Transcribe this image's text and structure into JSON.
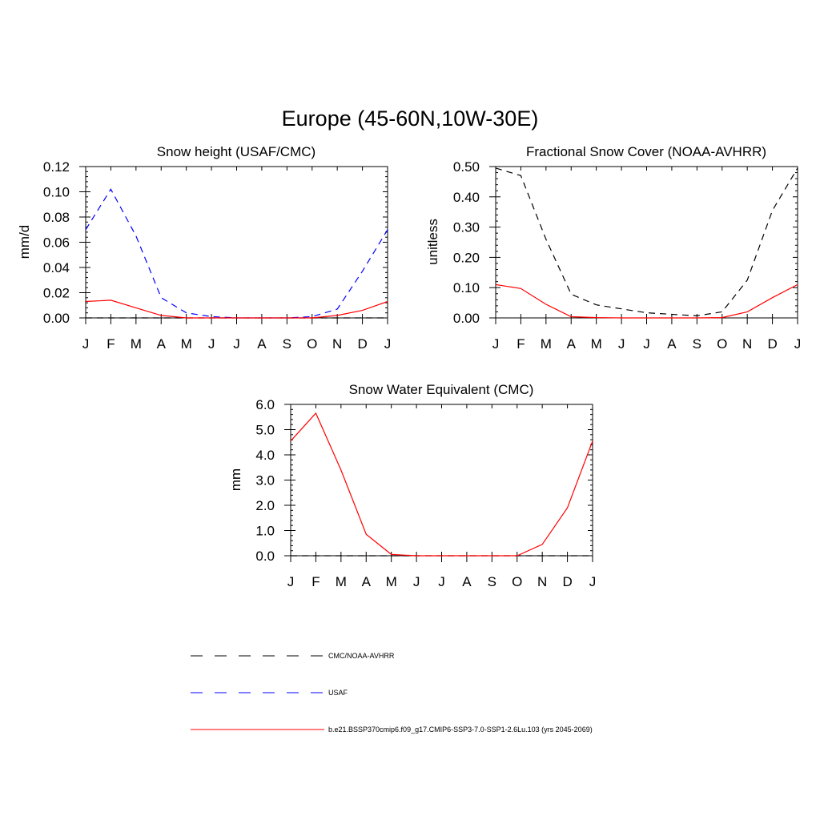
{
  "figure": {
    "title": "Europe (45-60N,10W-30E)"
  },
  "colors": {
    "obs": "#000000",
    "usaf": "#0000ff",
    "model": "#ff0000"
  },
  "chart_data": [
    {
      "type": "line",
      "title": "Snow height (USAF/CMC)",
      "xlabel": "",
      "ylabel": "mm/d",
      "categories": [
        "J",
        "F",
        "M",
        "A",
        "M",
        "J",
        "J",
        "A",
        "S",
        "O",
        "N",
        "D",
        "J"
      ],
      "ylim": [
        0,
        0.12
      ],
      "yticks": [
        0.0,
        0.02,
        0.04,
        0.06,
        0.08,
        0.1,
        0.12
      ],
      "ytick_labels": [
        "0.00",
        "0.02",
        "0.04",
        "0.06",
        "0.08",
        "0.10",
        "0.12"
      ],
      "grid": false,
      "series": [
        {
          "name": "CMC/NOAA-AVHRR",
          "style": "dashed",
          "color": "#000000",
          "values": [
            0,
            0,
            0,
            0,
            0,
            0,
            0,
            0,
            0,
            0,
            0,
            0,
            0
          ]
        },
        {
          "name": "USAF",
          "style": "dashed",
          "color": "#0000ff",
          "values": [
            0.07,
            0.102,
            0.065,
            0.016,
            0.004,
            0.001,
            0.0,
            0.0,
            0.0,
            0.001,
            0.007,
            0.037,
            0.07
          ]
        },
        {
          "name": "b.e21.BSSP370cmip6.f09_g17.CMIP6-SSP3-7.0-SSP1-2.6Lu.103 (yrs 2045-2069)",
          "style": "solid",
          "color": "#ff0000",
          "values": [
            0.013,
            0.014,
            0.008,
            0.002,
            0.0,
            0.0,
            0.0,
            0.0,
            0.0,
            0.0,
            0.002,
            0.006,
            0.013
          ]
        }
      ]
    },
    {
      "type": "line",
      "title": "Fractional Snow Cover (NOAA-AVHRR)",
      "xlabel": "",
      "ylabel": "unitless",
      "categories": [
        "J",
        "F",
        "M",
        "A",
        "M",
        "J",
        "J",
        "A",
        "S",
        "O",
        "N",
        "D",
        "J"
      ],
      "ylim": [
        0,
        0.5
      ],
      "yticks": [
        0.0,
        0.1,
        0.2,
        0.3,
        0.4,
        0.5
      ],
      "ytick_labels": [
        "0.00",
        "0.10",
        "0.20",
        "0.30",
        "0.40",
        "0.50"
      ],
      "grid": false,
      "series": [
        {
          "name": "CMC/NOAA-AVHRR",
          "style": "dashed",
          "color": "#000000",
          "values": [
            0.495,
            0.47,
            0.26,
            0.078,
            0.043,
            0.03,
            0.017,
            0.012,
            0.007,
            0.02,
            0.125,
            0.355,
            0.495
          ]
        },
        {
          "name": "b.e21.BSSP370cmip6.f09_g17.CMIP6-SSP3-7.0-SSP1-2.6Lu.103 (yrs 2045-2069)",
          "style": "solid",
          "color": "#ff0000",
          "values": [
            0.11,
            0.097,
            0.045,
            0.004,
            0.001,
            0.0,
            0.0,
            0.0,
            0.0,
            0.001,
            0.02,
            0.067,
            0.11
          ]
        }
      ]
    },
    {
      "type": "line",
      "title": "Snow Water Equivalent (CMC)",
      "xlabel": "",
      "ylabel": "mm",
      "categories": [
        "J",
        "F",
        "M",
        "A",
        "M",
        "J",
        "J",
        "A",
        "S",
        "O",
        "N",
        "D",
        "J"
      ],
      "ylim": [
        0,
        6.0
      ],
      "yticks": [
        0.0,
        1.0,
        2.0,
        3.0,
        4.0,
        5.0,
        6.0
      ],
      "ytick_labels": [
        "0.0",
        "1.0",
        "2.0",
        "3.0",
        "4.0",
        "5.0",
        "6.0"
      ],
      "grid": false,
      "series": [
        {
          "name": "CMC/NOAA-AVHRR",
          "style": "dashed",
          "color": "#000000",
          "values": [
            0,
            0,
            0,
            0,
            0,
            0,
            0,
            0,
            0,
            0,
            0,
            0,
            0
          ]
        },
        {
          "name": "b.e21.BSSP370cmip6.f09_g17.CMIP6-SSP3-7.0-SSP1-2.6Lu.103 (yrs 2045-2069)",
          "style": "solid",
          "color": "#ff0000",
          "values": [
            4.55,
            5.65,
            3.4,
            0.85,
            0.05,
            0.0,
            0.0,
            0.0,
            0.0,
            0.0,
            0.45,
            1.9,
            4.55
          ]
        }
      ]
    }
  ],
  "legend": [
    {
      "label": "CMC/NOAA-AVHRR",
      "style": "dashed",
      "color": "#000000"
    },
    {
      "label": "USAF",
      "style": "dashed",
      "color": "#0000ff"
    },
    {
      "label": "b.e21.BSSP370cmip6.f09_g17.CMIP6-SSP3-7.0-SSP1-2.6Lu.103 (yrs 2045-2069)",
      "style": "solid",
      "color": "#ff0000"
    }
  ]
}
